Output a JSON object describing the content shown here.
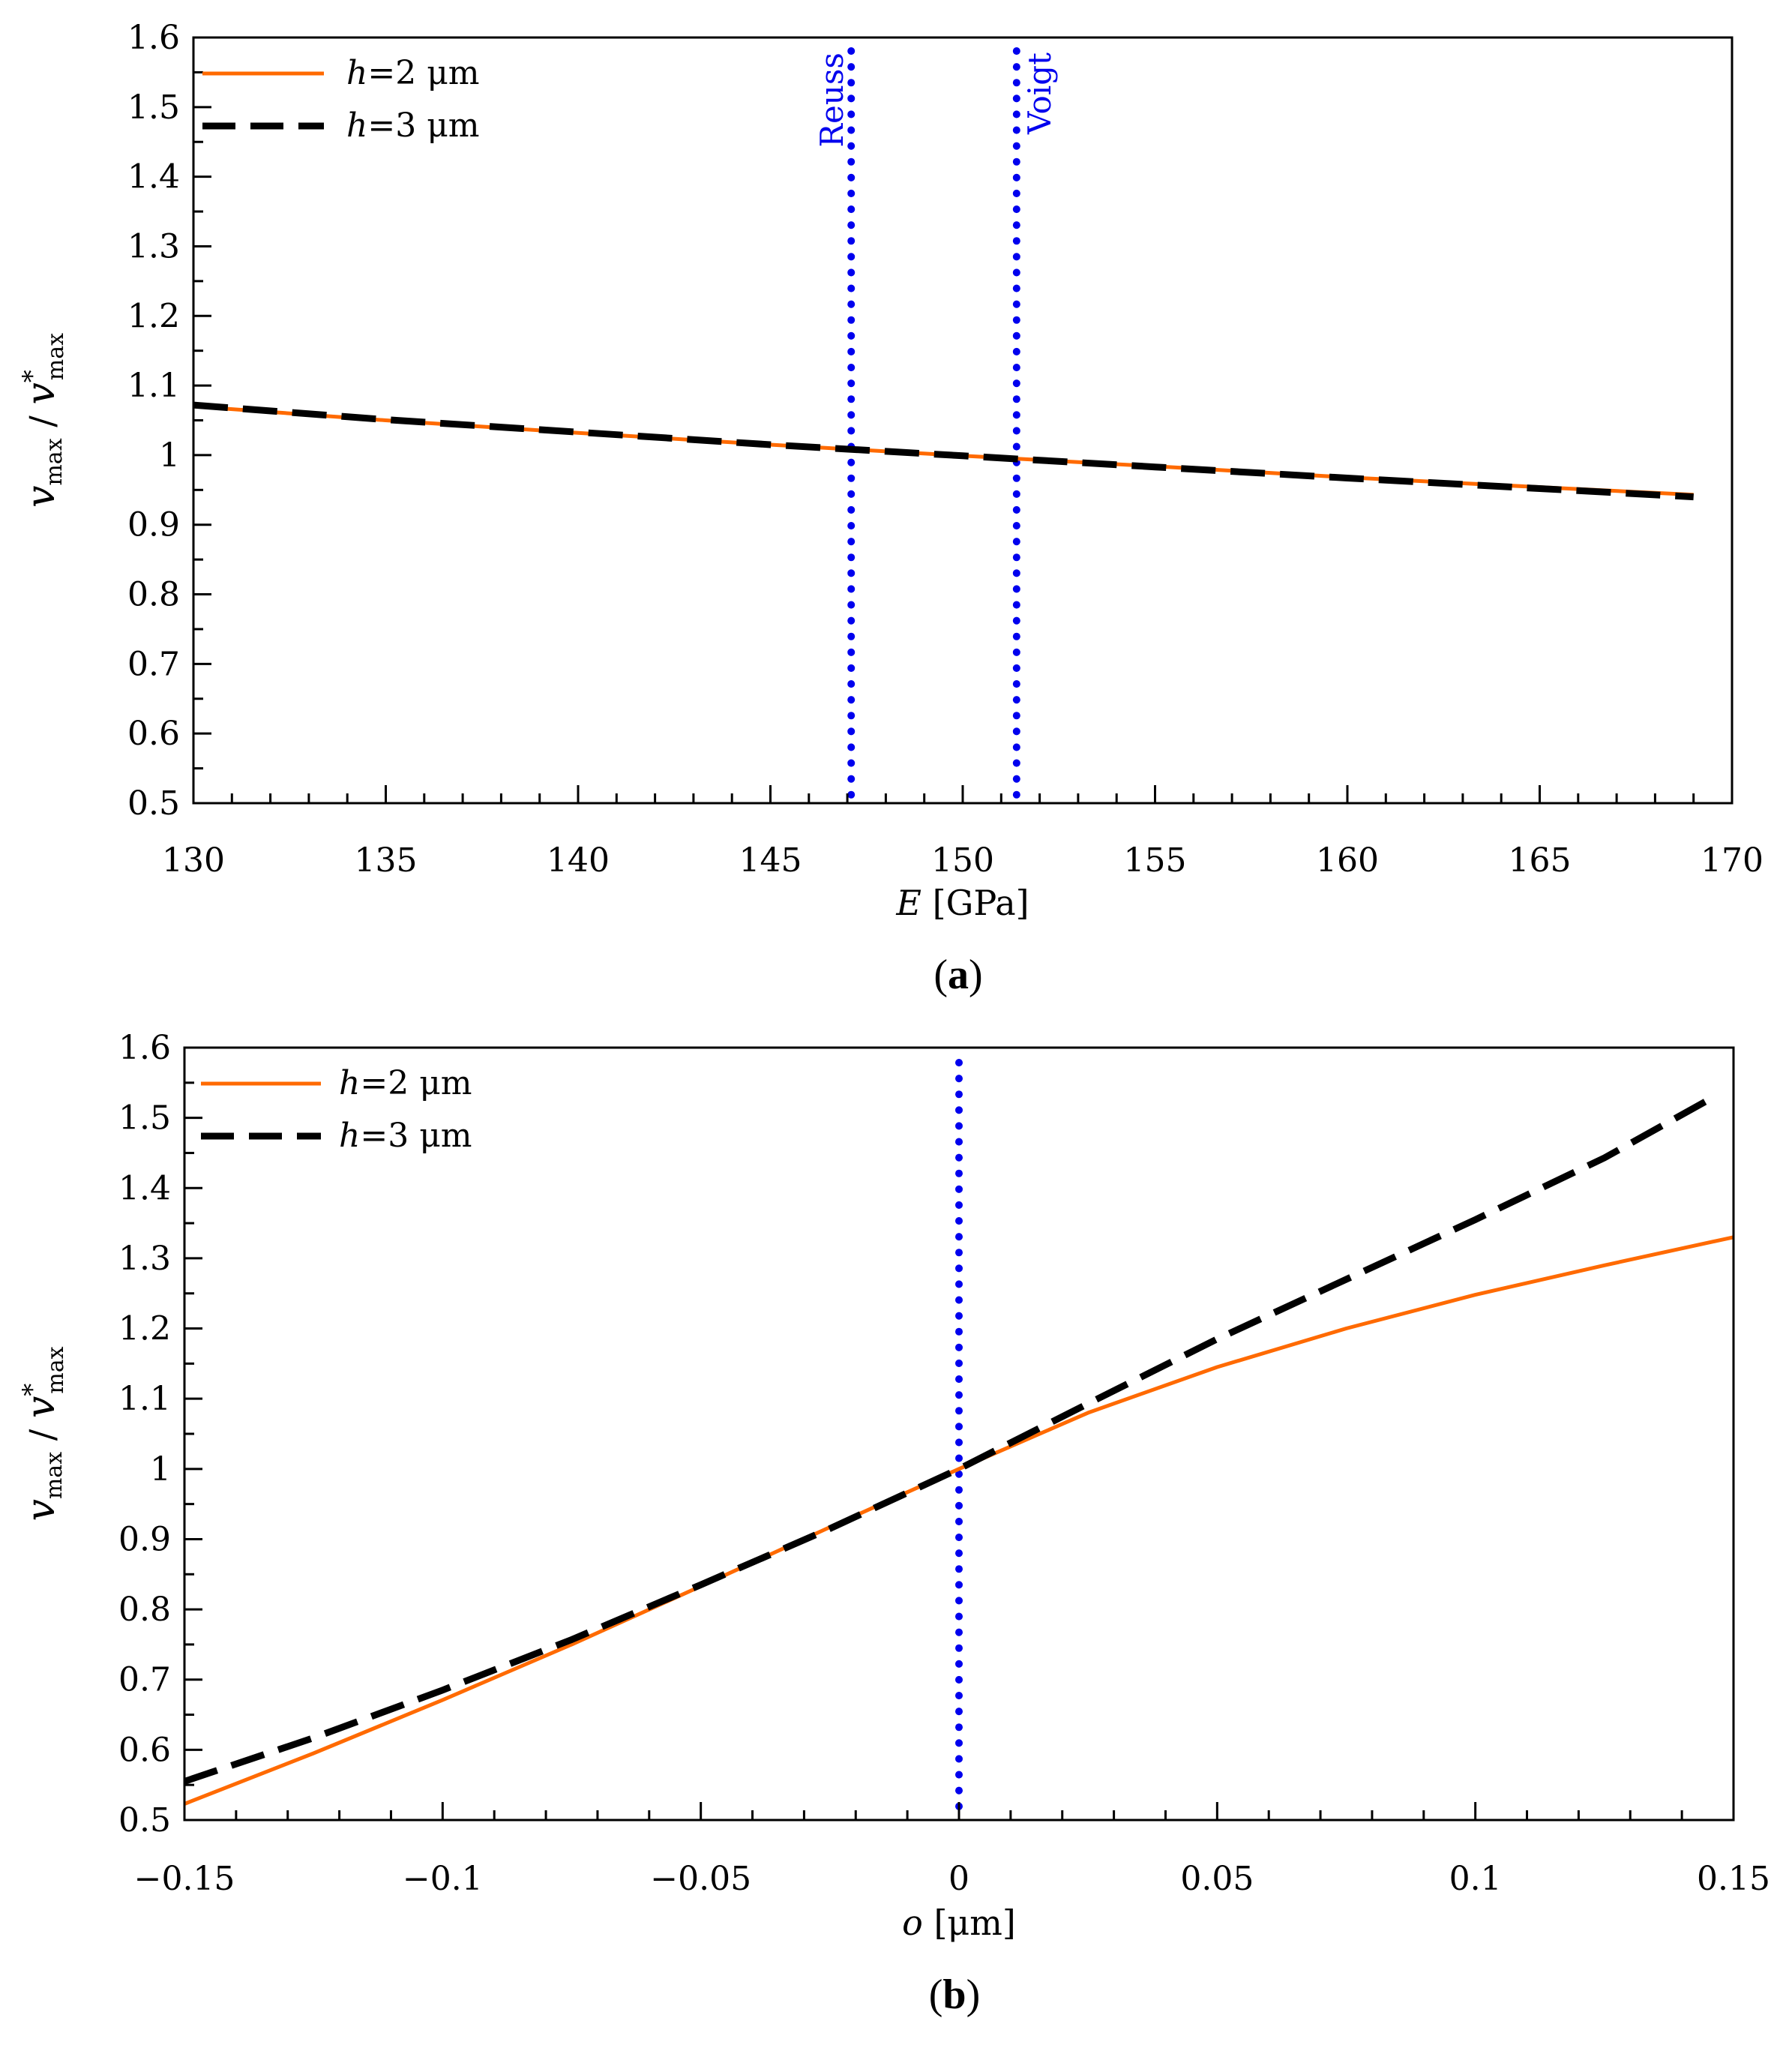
{
  "colors": {
    "series_h2": "#ff6a00",
    "series_h3": "#000000",
    "reference": "#0000ee"
  },
  "chart_data": [
    {
      "type": "line",
      "panel": "a",
      "panel_label": {
        "open": "(",
        "letter": "a",
        "close": ")"
      },
      "xlabel": {
        "symbol": "E",
        "unit": "[GPa]"
      },
      "ylabel": {
        "num": "v",
        "num_sub": "max",
        "sep": "/",
        "den": "v",
        "den_sup": "*",
        "den_sub": "max"
      },
      "xlim": [
        130,
        170
      ],
      "ylim": [
        0.5,
        1.6
      ],
      "xticks": [
        130,
        135,
        140,
        145,
        150,
        155,
        160,
        165,
        170
      ],
      "xtick_labels": [
        "130",
        "135",
        "140",
        "145",
        "150",
        "155",
        "160",
        "165",
        "170"
      ],
      "xminor_step": 1,
      "yticks": [
        0.5,
        0.6,
        0.7,
        0.8,
        0.9,
        1.0,
        1.1,
        1.2,
        1.3,
        1.4,
        1.5,
        1.6
      ],
      "ytick_labels": [
        "0.5",
        "0.6",
        "0.7",
        "0.8",
        "0.9",
        "1",
        "1.1",
        "1.2",
        "1.3",
        "1.4",
        "1.5",
        "1.6"
      ],
      "yminor_step": 0.05,
      "reference_lines": [
        {
          "x": 147.1,
          "label": "Reuss"
        },
        {
          "x": 151.4,
          "label": "Voigt"
        }
      ],
      "legend": {
        "position": "top-left"
      },
      "series": [
        {
          "name": "h=2 μm",
          "name_var": "h",
          "name_eq": "=2",
          "name_unit": "μm",
          "style": "solid",
          "x": [
            130,
            135,
            140,
            145,
            150,
            155,
            160,
            165,
            169
          ],
          "y": [
            1.07,
            1.05,
            1.032,
            1.015,
            0.999,
            0.984,
            0.968,
            0.954,
            0.943
          ]
        },
        {
          "name": "h=3 μm",
          "name_var": "h",
          "name_eq": "=3",
          "name_unit": "μm",
          "style": "dashed",
          "x": [
            130,
            135,
            140,
            145,
            150,
            155,
            160,
            165,
            169
          ],
          "y": [
            1.072,
            1.051,
            1.033,
            1.015,
            0.999,
            0.983,
            0.967,
            0.952,
            0.94
          ]
        }
      ]
    },
    {
      "type": "line",
      "panel": "b",
      "panel_label": {
        "open": "(",
        "letter": "b",
        "close": ")"
      },
      "xlabel": {
        "symbol": "o",
        "unit": "[μm]"
      },
      "ylabel": {
        "num": "v",
        "num_sub": "max",
        "sep": "/",
        "den": "v",
        "den_sup": "*",
        "den_sub": "max"
      },
      "xlim": [
        -0.15,
        0.15
      ],
      "ylim": [
        0.5,
        1.6
      ],
      "xticks": [
        -0.15,
        -0.1,
        -0.05,
        0,
        0.05,
        0.1,
        0.15
      ],
      "xtick_labels": [
        "−0.15",
        "−0.1",
        "−0.05",
        "0",
        "0.05",
        "0.1",
        "0.15"
      ],
      "xminor_step": 0.01,
      "yticks": [
        0.5,
        0.6,
        0.7,
        0.8,
        0.9,
        1.0,
        1.1,
        1.2,
        1.3,
        1.4,
        1.5,
        1.6
      ],
      "ytick_labels": [
        "0.5",
        "0.6",
        "0.7",
        "0.8",
        "0.9",
        "1",
        "1.1",
        "1.2",
        "1.3",
        "1.4",
        "1.5",
        "1.6"
      ],
      "yminor_step": 0.05,
      "reference_lines": [
        {
          "x": 0,
          "label": ""
        }
      ],
      "legend": {
        "position": "top-left"
      },
      "series": [
        {
          "name": "h=2 μm",
          "name_var": "h",
          "name_eq": "=2",
          "name_unit": "μm",
          "style": "solid",
          "x": [
            -0.15,
            -0.125,
            -0.1,
            -0.075,
            -0.05,
            -0.025,
            0,
            0.025,
            0.05,
            0.075,
            0.1,
            0.125,
            0.15
          ],
          "y": [
            0.523,
            0.595,
            0.671,
            0.75,
            0.833,
            0.917,
            1.0,
            1.08,
            1.145,
            1.2,
            1.248,
            1.29,
            1.33
          ]
        },
        {
          "name": "h=3 μm",
          "name_var": "h",
          "name_eq": "=3",
          "name_unit": "μm",
          "style": "dashed",
          "x": [
            -0.15,
            -0.125,
            -0.1,
            -0.075,
            -0.05,
            -0.025,
            0,
            0.025,
            0.05,
            0.075,
            0.1,
            0.125,
            0.145
          ],
          "y": [
            0.555,
            0.617,
            0.685,
            0.757,
            0.835,
            0.915,
            1.0,
            1.093,
            1.185,
            1.27,
            1.355,
            1.443,
            1.525
          ]
        }
      ]
    }
  ]
}
